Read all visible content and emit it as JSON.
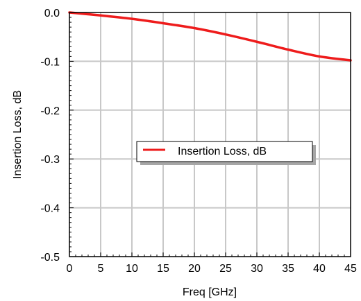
{
  "chart_data": {
    "type": "line",
    "xlabel": "Freq [GHz]",
    "ylabel": "Insertion Loss, dB",
    "xlim": [
      0,
      45
    ],
    "ylim": [
      -0.5,
      0.0
    ],
    "xticks": [
      0,
      5,
      10,
      15,
      20,
      25,
      30,
      35,
      40,
      45
    ],
    "yticks": [
      0.0,
      -0.1,
      -0.2,
      -0.3,
      -0.4,
      -0.5
    ],
    "xtick_labels": [
      "0",
      "5",
      "10",
      "15",
      "20",
      "25",
      "30",
      "35",
      "40",
      "45"
    ],
    "ytick_labels": [
      "0.0",
      "-0.1",
      "-0.2",
      "-0.3",
      "-0.4",
      "-0.5"
    ],
    "grid": true,
    "legend_position": "center-right",
    "series": [
      {
        "name": "Insertion Loss, dB",
        "color": "#ee1c1c",
        "x": [
          0,
          5,
          10,
          15,
          20,
          25,
          30,
          35,
          40,
          45
        ],
        "y": [
          0.0,
          -0.006,
          -0.013,
          -0.022,
          -0.032,
          -0.045,
          -0.06,
          -0.076,
          -0.09,
          -0.098
        ]
      }
    ]
  }
}
